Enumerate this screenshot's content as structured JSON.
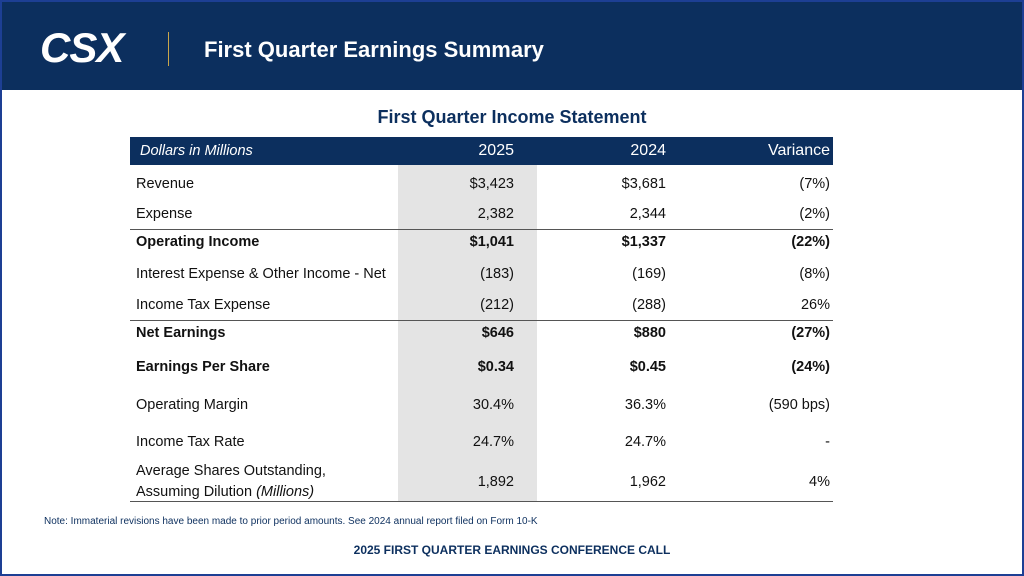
{
  "header": {
    "logo": "CSX",
    "title": "First Quarter Earnings Summary"
  },
  "table": {
    "title": "First Quarter Income Statement",
    "columns": [
      "Dollars in Millions",
      "2025",
      "2024",
      "Variance"
    ],
    "rows": [
      {
        "label": "Revenue",
        "values": [
          "$3,423",
          "$3,681",
          "(7%)"
        ],
        "bold": false
      },
      {
        "label": "Expense",
        "values": [
          "2,382",
          "2,344",
          "(2%)"
        ],
        "bold": false,
        "rule_below": true
      },
      {
        "label": "Operating Income",
        "values": [
          "$1,041",
          "$1,337",
          "(22%)"
        ],
        "bold": true
      },
      {
        "label": "Interest Expense & Other Income - Net",
        "values": [
          "(183)",
          "(169)",
          "(8%)"
        ],
        "bold": false
      },
      {
        "label": "Income Tax Expense",
        "values": [
          "(212)",
          "(288)",
          "26%"
        ],
        "bold": false,
        "rule_below": true
      },
      {
        "label": "Net Earnings",
        "values": [
          "$646",
          "$880",
          "(27%)"
        ],
        "bold": true
      },
      {
        "label": "Earnings Per Share",
        "values": [
          "$0.34",
          "$0.45",
          "(24%)"
        ],
        "bold": true
      },
      {
        "label": "Operating Margin",
        "values": [
          "30.4%",
          "36.3%",
          "(590 bps)"
        ],
        "bold": false
      },
      {
        "label": "Income Tax Rate",
        "values": [
          "24.7%",
          "24.7%",
          "-"
        ],
        "bold": false
      },
      {
        "label": "Average Shares Outstanding,",
        "label_line2": "Assuming Dilution",
        "label_note": "(Millions)",
        "values": [
          "1,892",
          "1,962",
          "4%"
        ],
        "bold": false,
        "rule_below": true
      }
    ]
  },
  "footnote": "Note: Immaterial revisions have been made to prior period amounts. See 2024 annual report filed on Form 10-K",
  "footer": "2025 FIRST QUARTER EARNINGS CONFERENCE CALL"
}
